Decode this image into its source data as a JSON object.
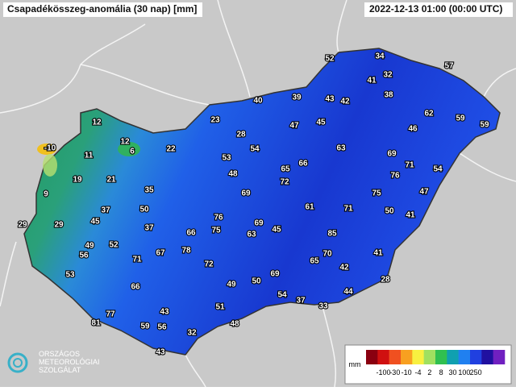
{
  "header": {
    "title": "Csapadékösszeg-anomália (30 nap) [mm]",
    "timestamp": "2022-12-13 01:00 (00:00 UTC)"
  },
  "stations": [
    52,
    34,
    57,
    41,
    32,
    38,
    40,
    39,
    43,
    42,
    62,
    59,
    59,
    23,
    47,
    45,
    46,
    12,
    12,
    6,
    28,
    54,
    63,
    69,
    -10,
    11,
    22,
    53,
    65,
    66,
    71,
    54,
    48,
    72,
    76,
    19,
    21,
    35,
    69,
    75,
    47,
    9,
    61,
    71,
    50,
    41,
    37,
    50,
    76,
    69,
    29,
    29,
    45,
    37,
    66,
    75,
    63,
    45,
    85,
    49,
    52,
    78,
    67,
    56,
    71,
    70,
    41,
    72,
    65,
    42,
    53,
    69,
    50,
    49,
    28,
    66,
    54,
    44,
    37,
    51,
    33,
    77,
    43,
    81,
    59,
    56,
    48,
    32,
    43
  ],
  "legend": {
    "unit": "mm",
    "ticks": [
      -100,
      -30,
      -10,
      -4,
      2,
      8,
      30,
      100,
      250
    ],
    "colors": [
      "#8a0010",
      "#d01010",
      "#f05020",
      "#f8a020",
      "#f8f040",
      "#a0e060",
      "#30c050",
      "#10a0b0",
      "#2080f0",
      "#2040e0",
      "#2010a0",
      "#7020c0"
    ]
  },
  "logo": {
    "line1": "ORSZÁGOS",
    "line2": "METEOROLÓGIAI",
    "line3": "SZOLGÁLAT"
  }
}
